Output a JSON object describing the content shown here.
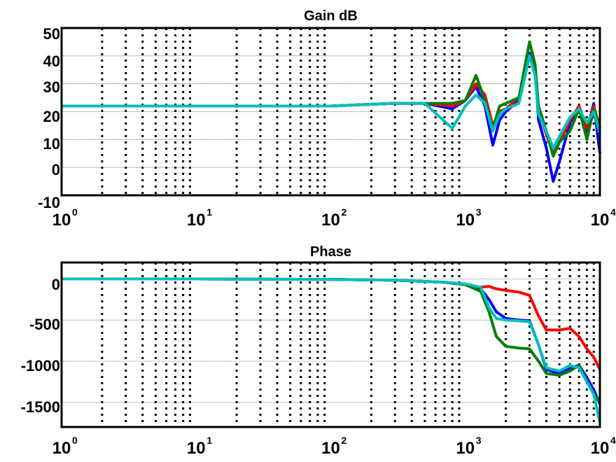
{
  "chart_data": [
    {
      "type": "line",
      "title": "Gain dB",
      "xscale": "log",
      "xlim": [
        1,
        10000
      ],
      "ylim": [
        -10,
        50
      ],
      "xticks": [
        {
          "base": "10",
          "exp": "0"
        },
        {
          "base": "10",
          "exp": "1"
        },
        {
          "base": "10",
          "exp": "2"
        },
        {
          "base": "10",
          "exp": "3"
        },
        {
          "base": "10",
          "exp": "4"
        }
      ],
      "yticks": [
        "50",
        "40",
        "30",
        "20",
        "10",
        "0",
        "-10"
      ],
      "grid": "dotted",
      "series": [
        {
          "color": "#0000ff",
          "x": [
            1,
            10,
            100,
            170,
            300,
            500,
            800,
            1000,
            1200,
            1400,
            1600,
            1800,
            2000,
            2500,
            3000,
            3300,
            3500,
            4000,
            4500,
            5000,
            6000,
            7000,
            8000,
            9000,
            10000
          ],
          "y": [
            22,
            22,
            22,
            22.5,
            23,
            23,
            21,
            24,
            29,
            22,
            8,
            17,
            20,
            24,
            41,
            36,
            17,
            7,
            -5,
            2,
            16,
            22,
            13,
            23,
            5
          ]
        },
        {
          "color": "#ff0000",
          "x": [
            1,
            10,
            100,
            170,
            300,
            500,
            800,
            1000,
            1200,
            1400,
            1600,
            1800,
            2000,
            2500,
            3000,
            3300,
            3500,
            4000,
            4500,
            5000,
            6000,
            7000,
            8000,
            9000,
            10000
          ],
          "y": [
            22,
            22,
            22,
            22.5,
            23,
            23,
            22,
            24,
            30,
            26,
            15,
            20,
            21,
            25,
            40,
            35,
            20,
            12,
            5,
            9,
            17,
            22,
            14,
            22,
            14
          ]
        },
        {
          "color": "#007f00",
          "x": [
            1,
            10,
            100,
            170,
            300,
            500,
            800,
            1000,
            1200,
            1400,
            1600,
            1800,
            2000,
            2500,
            3000,
            3300,
            3500,
            4000,
            4500,
            5000,
            6000,
            7000,
            8000,
            9000,
            10000
          ],
          "y": [
            22,
            22,
            22,
            22.5,
            23,
            23,
            23,
            24,
            33,
            24,
            14,
            22,
            23,
            25,
            45,
            37,
            22,
            13,
            4,
            9,
            13,
            21,
            10,
            21,
            14
          ]
        },
        {
          "color": "#00bfbf",
          "x": [
            1,
            10,
            100,
            170,
            300,
            500,
            800,
            1000,
            1200,
            1400,
            1600,
            1800,
            2000,
            2500,
            3000,
            3300,
            3500,
            4000,
            4500,
            5000,
            6000,
            7000,
            8000,
            9000,
            10000
          ],
          "y": [
            22,
            22,
            22,
            22.5,
            23,
            23,
            14,
            22,
            26,
            23,
            13,
            19,
            21,
            23,
            40,
            33,
            19,
            13,
            7,
            11,
            18,
            21,
            16,
            20,
            12
          ]
        }
      ]
    },
    {
      "type": "line",
      "title": "Phase",
      "xscale": "log",
      "xlim": [
        1,
        10000
      ],
      "ylim": [
        -1800,
        200
      ],
      "xticks": [
        {
          "base": "10",
          "exp": "0"
        },
        {
          "base": "10",
          "exp": "1"
        },
        {
          "base": "10",
          "exp": "2"
        },
        {
          "base": "10",
          "exp": "3"
        },
        {
          "base": "10",
          "exp": "4"
        }
      ],
      "yticks": [
        "0",
        "-500",
        "-1000",
        "-1500"
      ],
      "ytick_values": [
        0,
        -500,
        -1000,
        -1500
      ],
      "grid": "dotted",
      "series": [
        {
          "color": "#ff0000",
          "x": [
            1,
            10,
            100,
            300,
            700,
            1000,
            1300,
            1500,
            1700,
            2000,
            2500,
            3000,
            3500,
            4000,
            5000,
            6000,
            7000,
            8000,
            9000,
            10000
          ],
          "y": [
            0,
            0,
            -5,
            -15,
            -40,
            -70,
            -100,
            -90,
            -120,
            -140,
            -160,
            -200,
            -450,
            -620,
            -620,
            -600,
            -700,
            -850,
            -950,
            -1100
          ]
        },
        {
          "color": "#0000ff",
          "x": [
            1,
            10,
            100,
            300,
            700,
            1000,
            1300,
            1500,
            1700,
            2000,
            2500,
            3000,
            3500,
            4000,
            5000,
            6000,
            7000,
            8000,
            9000,
            10000
          ],
          "y": [
            0,
            0,
            -5,
            -15,
            -40,
            -70,
            -120,
            -250,
            -400,
            -480,
            -500,
            -510,
            -800,
            -1100,
            -1150,
            -1080,
            -1050,
            -1200,
            -1350,
            -1520
          ]
        },
        {
          "color": "#007f00",
          "x": [
            1,
            10,
            100,
            300,
            700,
            1000,
            1300,
            1500,
            1700,
            2000,
            2500,
            3000,
            3500,
            4000,
            5000,
            6000,
            7000,
            8000,
            9000,
            10000
          ],
          "y": [
            0,
            0,
            -5,
            -15,
            -40,
            -70,
            -150,
            -400,
            -700,
            -820,
            -840,
            -850,
            -1000,
            -1150,
            -1170,
            -1120,
            -1050,
            -1250,
            -1400,
            -1500
          ]
        },
        {
          "color": "#00bfbf",
          "x": [
            1,
            10,
            100,
            300,
            700,
            1000,
            1300,
            1500,
            1700,
            2000,
            2500,
            3000,
            3500,
            4000,
            5000,
            6000,
            7000,
            8000,
            9000,
            10000
          ],
          "y": [
            0,
            0,
            -5,
            -15,
            -40,
            -60,
            -100,
            -350,
            -480,
            -500,
            -510,
            -520,
            -800,
            -1080,
            -1120,
            -1050,
            -1080,
            -1250,
            -1400,
            -1750
          ]
        }
      ]
    }
  ]
}
